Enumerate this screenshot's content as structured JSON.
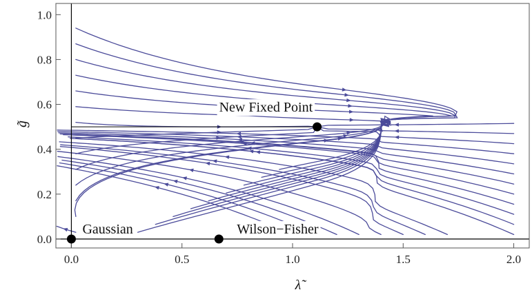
{
  "chart_data": {
    "type": "streamplot",
    "title": "",
    "xlabel": "λ̃",
    "ylabel": "g̃",
    "xlim": [
      -0.07,
      2.07
    ],
    "ylim": [
      -0.04,
      1.05
    ],
    "xticks": [
      0.0,
      0.5,
      1.0,
      1.5,
      2.0
    ],
    "xtick_labels": [
      "0.0",
      "0.5",
      "1.0",
      "1.5",
      "2.0"
    ],
    "yticks": [
      0.0,
      0.2,
      0.4,
      0.6,
      0.8,
      1.0
    ],
    "ytick_labels": [
      "0.0",
      "0.2",
      "0.4",
      "0.6",
      "0.8",
      "1.0"
    ],
    "grid": false,
    "stream_color": "#4b4b9a",
    "fixed_points": [
      {
        "label": "Gaussian",
        "x": 0.0,
        "y": 0.0
      },
      {
        "label": "Wilson−Fisher",
        "x": 0.667,
        "y": 0.0
      },
      {
        "label": "New Fixed Point",
        "x": 1.111,
        "y": 0.5
      }
    ]
  }
}
